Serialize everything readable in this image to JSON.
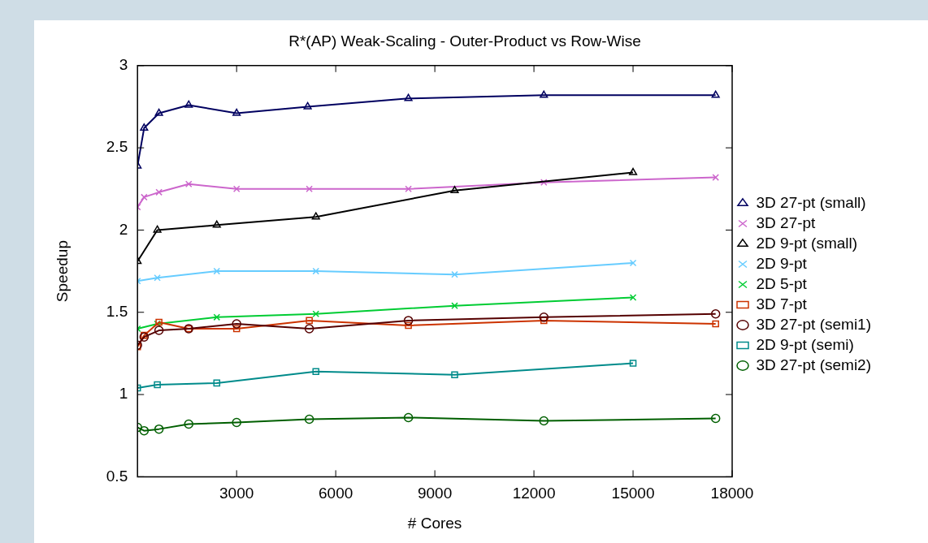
{
  "chart_data": {
    "type": "line",
    "title": "R*(AP) Weak-Scaling - Outer-Product vs Row-Wise",
    "xlabel": "# Cores",
    "ylabel": "Speedup",
    "xlim": [
      0,
      18000
    ],
    "xticks": [
      3000,
      6000,
      9000,
      12000,
      15000,
      18000
    ],
    "ylim": [
      0.5,
      3
    ],
    "yticks": [
      0.5,
      1,
      1.5,
      2,
      2.5,
      3
    ],
    "grid": false,
    "legend": "right",
    "line_style": "solid",
    "series": [
      {
        "name": "3D 27-pt (small)",
        "color": "#000060",
        "marker": "triangle",
        "x": [
          0,
          200,
          650,
          1550,
          3000,
          5150,
          8200,
          12300,
          17500
        ],
        "values": [
          2.39,
          2.62,
          2.71,
          2.76,
          2.71,
          2.75,
          2.8,
          2.82,
          2.82
        ]
      },
      {
        "name": "3D 27-pt",
        "color": "#cc66cc",
        "marker": "cross",
        "x": [
          0,
          200,
          650,
          1550,
          3000,
          5200,
          8200,
          12300,
          17500
        ],
        "values": [
          2.14,
          2.2,
          2.23,
          2.28,
          2.25,
          2.25,
          2.25,
          2.29,
          2.32
        ]
      },
      {
        "name": "2D 9-pt (small)",
        "color": "#000000",
        "marker": "triangle",
        "x": [
          0,
          600,
          2400,
          5400,
          9600,
          15000
        ],
        "values": [
          1.81,
          2.0,
          2.03,
          2.08,
          2.24,
          2.35
        ]
      },
      {
        "name": "2D 9-pt",
        "color": "#66ccff",
        "marker": "cross",
        "x": [
          0,
          600,
          2400,
          5400,
          9600,
          15000
        ],
        "values": [
          1.69,
          1.71,
          1.75,
          1.75,
          1.73,
          1.8
        ]
      },
      {
        "name": "2D 5-pt",
        "color": "#00cc33",
        "marker": "cross",
        "x": [
          0,
          600,
          2400,
          5400,
          9600,
          15000
        ],
        "values": [
          1.4,
          1.43,
          1.47,
          1.49,
          1.54,
          1.59
        ]
      },
      {
        "name": "3D 7-pt",
        "color": "#cc3300",
        "marker": "square",
        "x": [
          0,
          200,
          650,
          1550,
          3000,
          5200,
          8200,
          12300,
          17500
        ],
        "values": [
          1.29,
          1.36,
          1.44,
          1.4,
          1.4,
          1.45,
          1.42,
          1.45,
          1.43
        ]
      },
      {
        "name": "3D 27-pt (semi1)",
        "color": "#550000",
        "marker": "circle",
        "x": [
          0,
          200,
          650,
          1550,
          3000,
          5200,
          8200,
          12300,
          17500
        ],
        "values": [
          1.3,
          1.35,
          1.39,
          1.4,
          1.43,
          1.4,
          1.45,
          1.47,
          1.49
        ]
      },
      {
        "name": "2D 9-pt (semi)",
        "color": "#008b8b",
        "marker": "square",
        "x": [
          0,
          600,
          2400,
          5400,
          9600,
          15000
        ],
        "values": [
          1.04,
          1.06,
          1.07,
          1.14,
          1.12,
          1.19
        ]
      },
      {
        "name": "3D 27-pt (semi2)",
        "color": "#005f00",
        "marker": "circle",
        "x": [
          0,
          200,
          650,
          1550,
          3000,
          5200,
          8200,
          12300,
          17500
        ],
        "values": [
          0.8,
          0.78,
          0.79,
          0.82,
          0.83,
          0.85,
          0.86,
          0.84,
          0.855
        ]
      }
    ]
  }
}
